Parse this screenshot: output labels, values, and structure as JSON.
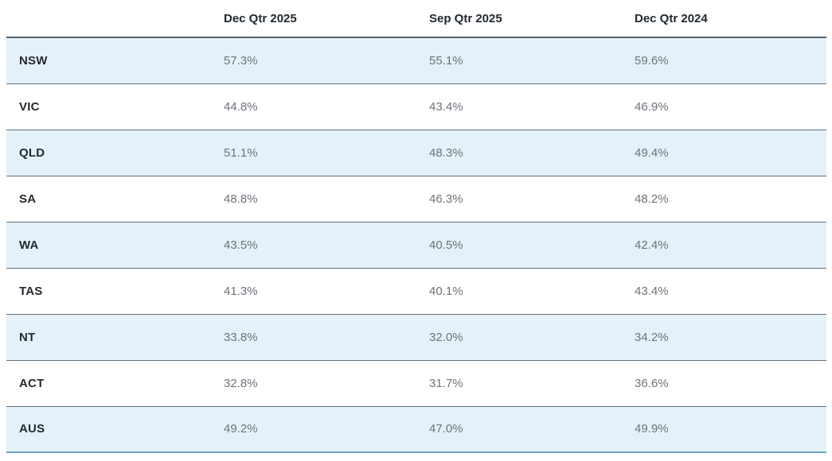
{
  "chart_data": {
    "type": "table",
    "columns": [
      "",
      "Dec Qtr 2025",
      "Sep Qtr 2025",
      "Dec Qtr 2024"
    ],
    "rows": [
      {
        "label": "NSW",
        "values": [
          "57.3%",
          "55.1%",
          "59.6%"
        ]
      },
      {
        "label": "VIC",
        "values": [
          "44.8%",
          "43.4%",
          "46.9%"
        ]
      },
      {
        "label": "QLD",
        "values": [
          "51.1%",
          "48.3%",
          "49.4%"
        ]
      },
      {
        "label": "SA",
        "values": [
          "48.8%",
          "46.3%",
          "48.2%"
        ]
      },
      {
        "label": "WA",
        "values": [
          "43.5%",
          "40.5%",
          "42.4%"
        ]
      },
      {
        "label": "TAS",
        "values": [
          "41.3%",
          "40.1%",
          "43.4%"
        ]
      },
      {
        "label": "NT",
        "values": [
          "33.8%",
          "32.0%",
          "34.2%"
        ]
      },
      {
        "label": "ACT",
        "values": [
          "32.8%",
          "31.7%",
          "36.6%"
        ]
      },
      {
        "label": "AUS",
        "values": [
          "49.2%",
          "47.0%",
          "49.9%"
        ]
      }
    ],
    "layout": {
      "striped_rows": "odd",
      "stripe_color": "#e5f1f8",
      "separator_color": "#5f707e",
      "header_rule_color": "#55636f",
      "bottom_rule_color": "#6ba3c6",
      "label_text_color": "#242a31",
      "value_text_color": "#6d737a",
      "header_text_color": "#222831"
    }
  }
}
